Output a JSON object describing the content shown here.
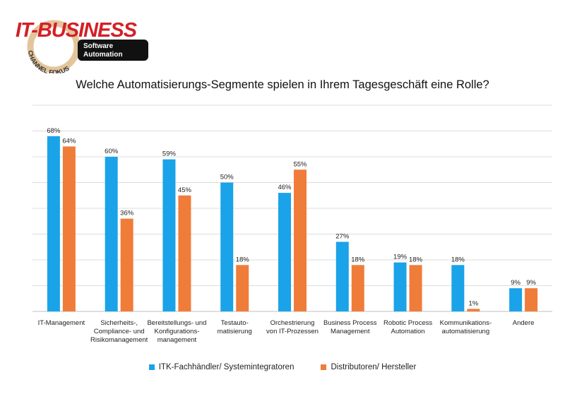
{
  "logo": {
    "brand": "IT-BUSINESS",
    "ring_text": "CHANNEL FOKUS",
    "badge_line1": "Software",
    "badge_line2": "Automation"
  },
  "chart_data": {
    "type": "bar",
    "title": "Welche Automatisierungs-Segmente spielen in Ihrem Tagesgeschäft eine Rolle?",
    "xlabel": "",
    "ylabel": "",
    "ylim": [
      0,
      80
    ],
    "grid": true,
    "legend_position": "bottom",
    "categories": [
      "IT-Management",
      "Sicherheits-,\nCompliance- und\nRisikomanagement",
      "Bereitstellungs- und\nKonfigurations-\nmanagement",
      "Testauto-\nmatisierung",
      "Orchestrierung\nvon IT-Prozessen",
      "Business Process\nManagement",
      "Robotic Process\nAutomation",
      "Kommunikations-\nautomatisierung",
      "Andere"
    ],
    "series": [
      {
        "name": "ITK-Fachhändler/ Systemintegratoren",
        "color": "#1aa3e8",
        "values": [
          68,
          60,
          59,
          50,
          46,
          27,
          19,
          18,
          9
        ],
        "labels": [
          "68%",
          "60%",
          "59%",
          "50%",
          "46%",
          "27%",
          "19%",
          "18%",
          "9%"
        ]
      },
      {
        "name": "Distributoren/ Hersteller",
        "color": "#f07c3a",
        "values": [
          64,
          36,
          45,
          18,
          55,
          18,
          18,
          1,
          9
        ],
        "labels": [
          "64%",
          "36%",
          "45%",
          "18%",
          "55%",
          "18%",
          "18%",
          "1%",
          "9%"
        ]
      }
    ]
  }
}
